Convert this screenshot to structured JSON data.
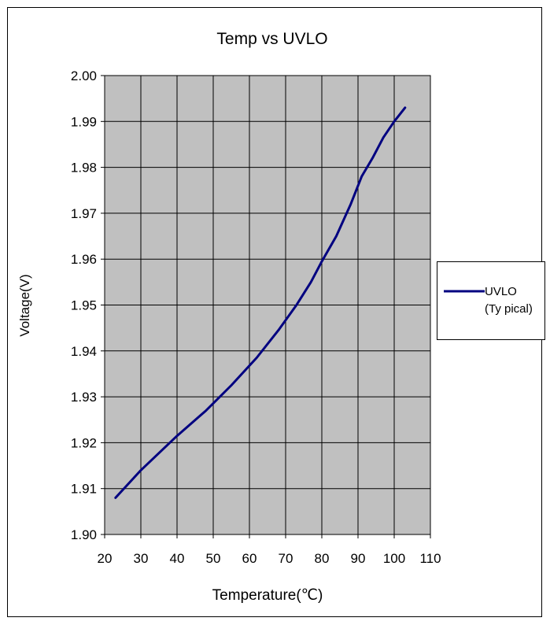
{
  "chart_data": {
    "type": "line",
    "title": "Temp vs UVLO",
    "xlabel": "Temperature(℃)",
    "ylabel": "Voltage(V)",
    "xlim": [
      20,
      110
    ],
    "ylim": [
      1.9,
      2.0
    ],
    "xticks": [
      "20",
      "30",
      "40",
      "50",
      "60",
      "70",
      "80",
      "90",
      "100",
      "110"
    ],
    "yticks": [
      "1.90",
      "1.91",
      "1.92",
      "1.93",
      "1.94",
      "1.95",
      "1.96",
      "1.97",
      "1.98",
      "1.99",
      "2.00"
    ],
    "grid": true,
    "legend_position": "right",
    "colors": {
      "plot_background": "#c0c0c0",
      "series": "#000080",
      "grid": "#000000"
    },
    "series": [
      {
        "name": "UVLO\n(Ty pical)",
        "x": [
          23,
          30,
          40,
          48,
          55,
          62,
          68,
          73,
          77,
          80,
          84,
          88,
          91,
          94,
          97,
          100,
          103
        ],
        "y": [
          1.908,
          1.914,
          1.9215,
          1.927,
          1.9325,
          1.9385,
          1.9445,
          1.95,
          1.955,
          1.9595,
          1.965,
          1.972,
          1.978,
          1.982,
          1.9865,
          1.99,
          1.993
        ]
      }
    ]
  }
}
